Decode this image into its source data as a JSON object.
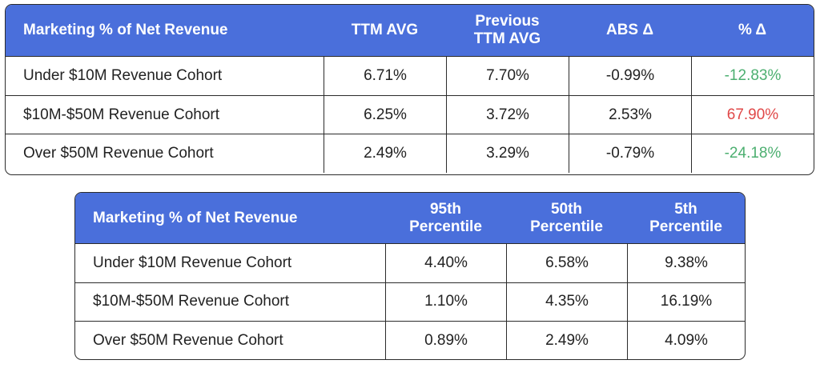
{
  "table1": {
    "headers": [
      "Marketing % of Net Revenue",
      "TTM AVG",
      "Previous\nTTM AVG",
      "ABS Δ",
      "% Δ"
    ],
    "rows": [
      {
        "label": "Under $10M Revenue Cohort",
        "ttm_avg": "6.71%",
        "prev_ttm_avg": "7.70%",
        "abs_delta": "-0.99%",
        "pct_delta": "-12.83%"
      },
      {
        "label": "$10M-$50M Revenue Cohort",
        "ttm_avg": "6.25%",
        "prev_ttm_avg": "3.72%",
        "abs_delta": "2.53%",
        "pct_delta": "67.90%"
      },
      {
        "label": "Over $50M Revenue Cohort",
        "ttm_avg": "2.49%",
        "prev_ttm_avg": "3.29%",
        "abs_delta": "-0.79%",
        "pct_delta": "-24.18%"
      }
    ]
  },
  "table2": {
    "headers": [
      "Marketing % of Net Revenue",
      "95th\nPercentile",
      "50th\nPercentile",
      "5th\nPercentile"
    ],
    "rows": [
      {
        "label": "Under $10M Revenue Cohort",
        "p95": "4.40%",
        "p50": "6.58%",
        "p5": "9.38%"
      },
      {
        "label": "$10M-$50M Revenue Cohort",
        "p95": "1.10%",
        "p50": "4.35%",
        "p5": "16.19%"
      },
      {
        "label": "Over $50M Revenue Cohort",
        "p95": "0.89%",
        "p50": "2.49%",
        "p5": "4.09%"
      }
    ]
  },
  "colors": {
    "header_bg": "#4a6fdb",
    "negative_change": "#4caf70",
    "positive_change": "#e04848"
  }
}
